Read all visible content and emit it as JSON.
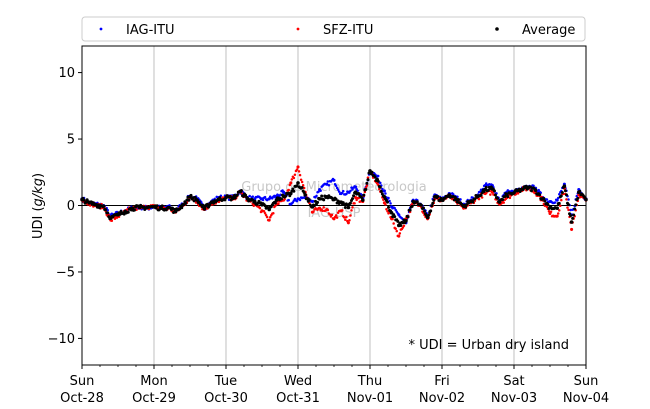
{
  "chart_data": {
    "type": "scatter",
    "title": "",
    "xlabel": "",
    "ylabel": "UDI (g/kg)",
    "ylabel_parts": {
      "prefix": "UDI (",
      "unit": "g/kg",
      "suffix": ")"
    },
    "ylim": [
      -12,
      12
    ],
    "yticks": [
      10,
      5,
      0,
      -5,
      -10
    ],
    "ytick_labels": [
      "10",
      "5",
      "0",
      "−5",
      "−10"
    ],
    "xlim": [
      "2018-10-28T00:00",
      "2018-11-04T00:00"
    ],
    "xtick_labels": [
      {
        "day": "Sun",
        "date": "Oct-28"
      },
      {
        "day": "Mon",
        "date": "Oct-29"
      },
      {
        "day": "Tue",
        "date": "Oct-30"
      },
      {
        "day": "Wed",
        "date": "Oct-31"
      },
      {
        "day": "Thu",
        "date": "Nov-01"
      },
      {
        "day": "Fri",
        "date": "Nov-02"
      },
      {
        "day": "Sat",
        "date": "Nov-03"
      },
      {
        "day": "Sun",
        "date": "Nov-04"
      }
    ],
    "grid": "vertical",
    "zero_line": true,
    "legend_placement": "top (above plot)",
    "annotation": "* UDI = Urban dry island",
    "watermark": [
      "Grupo de Micrometeorologia",
      "IAG-USP"
    ],
    "series_time_unit": "day",
    "series": [
      {
        "name": "IAG-ITU",
        "color": "#0000ff",
        "x": [
          0,
          0.1,
          0.2,
          0.3,
          0.4,
          0.5,
          0.6,
          0.7,
          0.8,
          0.9,
          1.0,
          1.1,
          1.2,
          1.3,
          1.4,
          1.5,
          1.6,
          1.7,
          1.8,
          1.9,
          2.0,
          2.1,
          2.2,
          2.3,
          2.4,
          2.5,
          2.6,
          2.7,
          2.8,
          2.9,
          3.0,
          3.1,
          3.2,
          3.3,
          3.4,
          3.5,
          3.6,
          3.7,
          3.8,
          3.9,
          4.0,
          4.1,
          4.2,
          4.3,
          4.4,
          4.5,
          4.6,
          4.7,
          4.8,
          4.9,
          5.0,
          5.1,
          5.2,
          5.3,
          5.4,
          5.5,
          5.6,
          5.7,
          5.8,
          5.9,
          6.0,
          6.1,
          6.2,
          6.3,
          6.4,
          6.5,
          6.6,
          6.7,
          6.8,
          6.9,
          7.0
        ],
        "y": [
          0.5,
          0.2,
          0.1,
          0.0,
          -0.8,
          -0.6,
          -0.4,
          -0.2,
          -0.1,
          -0.2,
          -0.1,
          -0.2,
          -0.1,
          -0.4,
          0.1,
          0.7,
          0.5,
          -0.2,
          0.3,
          0.6,
          0.6,
          0.6,
          1.1,
          0.6,
          0.5,
          0.5,
          0.5,
          0.7,
          1.0,
          0.1,
          0.5,
          0.6,
          0.3,
          1.2,
          1.6,
          1.9,
          0.9,
          1.0,
          1.4,
          0.5,
          2.6,
          2.2,
          1.1,
          -0.1,
          -0.7,
          -1.3,
          0.4,
          0.1,
          -0.8,
          0.8,
          0.4,
          0.9,
          0.6,
          0.1,
          0.4,
          0.8,
          1.5,
          1.5,
          0.4,
          1.0,
          1.0,
          1.2,
          1.4,
          1.3,
          0.6,
          0.3,
          0.4,
          1.6,
          -0.7,
          1.2,
          0.5
        ]
      },
      {
        "name": "SFZ-ITU",
        "color": "#ff0000",
        "x": [
          0,
          0.1,
          0.2,
          0.3,
          0.4,
          0.5,
          0.6,
          0.7,
          0.8,
          0.9,
          1.0,
          1.1,
          1.2,
          1.3,
          1.4,
          1.5,
          1.6,
          1.7,
          1.8,
          1.9,
          2.0,
          2.1,
          2.2,
          2.3,
          2.4,
          2.5,
          2.6,
          2.7,
          2.8,
          2.9,
          3.0,
          3.1,
          3.2,
          3.3,
          3.4,
          3.5,
          3.6,
          3.7,
          3.8,
          3.9,
          4.0,
          4.1,
          4.2,
          4.3,
          4.4,
          4.5,
          4.6,
          4.7,
          4.8,
          4.9,
          5.0,
          5.1,
          5.2,
          5.3,
          5.4,
          5.5,
          5.6,
          5.7,
          5.8,
          5.9,
          6.0,
          6.1,
          6.2,
          6.3,
          6.4,
          6.5,
          6.6,
          6.7,
          6.8,
          6.9,
          7.0
        ],
        "y": [
          0.4,
          0.2,
          0.0,
          -0.1,
          -1.1,
          -0.8,
          -0.5,
          -0.2,
          -0.2,
          -0.1,
          -0.1,
          -0.2,
          -0.2,
          -0.5,
          0.0,
          0.6,
          0.3,
          -0.3,
          0.2,
          0.3,
          0.6,
          0.5,
          1.0,
          0.4,
          0.1,
          -0.4,
          -1.1,
          0.1,
          0.4,
          1.7,
          2.9,
          1.0,
          -0.5,
          -0.2,
          -0.3,
          -1.0,
          -0.4,
          -1.3,
          0.6,
          0.3,
          2.6,
          1.7,
          0.2,
          -1.0,
          -2.3,
          -1.0,
          0.2,
          0.0,
          -1.0,
          0.5,
          0.4,
          0.7,
          0.3,
          -0.2,
          0.2,
          0.6,
          0.9,
          1.0,
          0.1,
          0.6,
          0.9,
          1.2,
          1.3,
          1.0,
          0.4,
          -0.6,
          -0.8,
          1.3,
          -1.8,
          0.8,
          0.4
        ]
      },
      {
        "name": "Average",
        "color": "#000000",
        "x": [
          0,
          0.1,
          0.2,
          0.3,
          0.4,
          0.5,
          0.6,
          0.7,
          0.8,
          0.9,
          1.0,
          1.1,
          1.2,
          1.3,
          1.4,
          1.5,
          1.6,
          1.7,
          1.8,
          1.9,
          2.0,
          2.1,
          2.2,
          2.3,
          2.4,
          2.5,
          2.6,
          2.7,
          2.8,
          2.9,
          3.0,
          3.1,
          3.2,
          3.3,
          3.4,
          3.5,
          3.6,
          3.7,
          3.8,
          3.9,
          4.0,
          4.1,
          4.2,
          4.3,
          4.4,
          4.5,
          4.6,
          4.7,
          4.8,
          4.9,
          5.0,
          5.1,
          5.2,
          5.3,
          5.4,
          5.5,
          5.6,
          5.7,
          5.8,
          5.9,
          6.0,
          6.1,
          6.2,
          6.3,
          6.4,
          6.5,
          6.6,
          6.7,
          6.8,
          6.9,
          7.0
        ],
        "y": [
          0.45,
          0.2,
          0.05,
          -0.05,
          -0.95,
          -0.7,
          -0.45,
          -0.2,
          -0.15,
          -0.15,
          -0.1,
          -0.2,
          -0.15,
          -0.45,
          0.05,
          0.65,
          0.4,
          -0.25,
          0.25,
          0.45,
          0.6,
          0.55,
          1.05,
          0.5,
          0.3,
          0.05,
          -0.3,
          0.4,
          0.7,
          0.9,
          1.7,
          0.8,
          -0.1,
          0.5,
          0.65,
          0.45,
          0.25,
          -0.15,
          1.0,
          0.4,
          2.6,
          1.95,
          0.65,
          -0.55,
          -1.5,
          -1.15,
          0.3,
          0.05,
          -0.9,
          0.65,
          0.4,
          0.8,
          0.45,
          -0.05,
          0.3,
          0.7,
          1.2,
          1.25,
          0.25,
          0.8,
          0.95,
          1.2,
          1.35,
          1.15,
          0.5,
          -0.15,
          -0.2,
          1.45,
          -1.25,
          1.0,
          0.45
        ]
      }
    ]
  }
}
